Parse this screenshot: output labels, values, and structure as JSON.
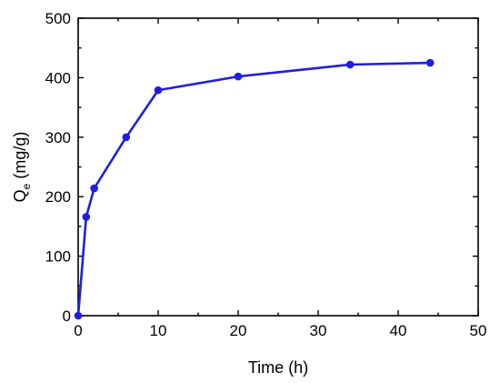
{
  "chart_data": {
    "type": "line",
    "title": "",
    "xlabel": "Time (h)",
    "ylabel": {
      "main": "Q",
      "subscript": "e",
      "unit": " (mg/g)"
    },
    "xlim": [
      0,
      50
    ],
    "ylim": [
      0,
      500
    ],
    "xticks": [
      "0",
      "10",
      "20",
      "30",
      "40",
      "50"
    ],
    "yticks": [
      "0",
      "100",
      "200",
      "300",
      "400",
      "500"
    ],
    "grid": false,
    "legend": "none",
    "series": [
      {
        "color": "#1f1fe0",
        "marker": "circle",
        "x": [
          0,
          1,
          2,
          6,
          10,
          20,
          34,
          44
        ],
        "y": [
          0,
          166,
          214,
          300,
          379,
          402,
          422,
          425
        ]
      }
    ]
  }
}
